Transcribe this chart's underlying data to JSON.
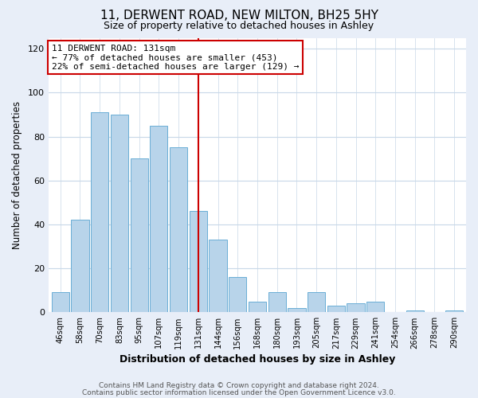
{
  "title": "11, DERWENT ROAD, NEW MILTON, BH25 5HY",
  "subtitle": "Size of property relative to detached houses in Ashley",
  "xlabel": "Distribution of detached houses by size in Ashley",
  "ylabel": "Number of detached properties",
  "footer_line1": "Contains HM Land Registry data © Crown copyright and database right 2024.",
  "footer_line2": "Contains public sector information licensed under the Open Government Licence v3.0.",
  "bin_labels": [
    "46sqm",
    "58sqm",
    "70sqm",
    "83sqm",
    "95sqm",
    "107sqm",
    "119sqm",
    "131sqm",
    "144sqm",
    "156sqm",
    "168sqm",
    "180sqm",
    "193sqm",
    "205sqm",
    "217sqm",
    "229sqm",
    "241sqm",
    "254sqm",
    "266sqm",
    "278sqm",
    "290sqm"
  ],
  "bar_values": [
    9,
    42,
    91,
    90,
    70,
    85,
    75,
    46,
    33,
    16,
    5,
    9,
    2,
    9,
    3,
    4,
    5,
    0,
    1,
    0,
    1
  ],
  "bar_color": "#b8d4ea",
  "bar_edge_color": "#6aaed6",
  "highlight_index": 7,
  "highlight_line_color": "#cc0000",
  "annotation_box_edge_color": "#cc0000",
  "annotation_line1": "11 DERWENT ROAD: 131sqm",
  "annotation_line2": "← 77% of detached houses are smaller (453)",
  "annotation_line3": "22% of semi-detached houses are larger (129) →",
  "ylim": [
    0,
    125
  ],
  "yticks": [
    0,
    20,
    40,
    60,
    80,
    100,
    120
  ],
  "background_color": "#e8eef8",
  "plot_background_color": "#ffffff",
  "grid_color": "#c8d8e8",
  "title_fontsize": 11,
  "subtitle_fontsize": 9
}
